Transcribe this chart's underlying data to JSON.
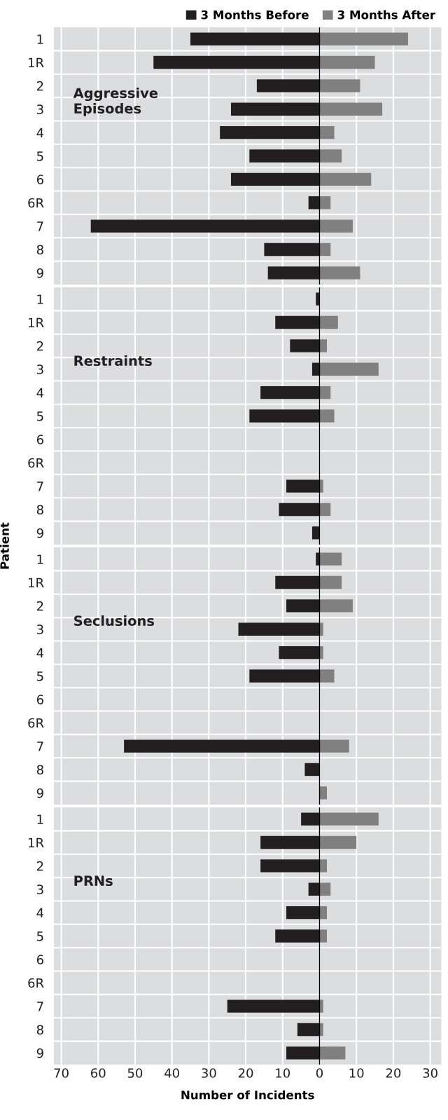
{
  "chart_data": [
    {
      "type": "bar",
      "orientation": "horizontal",
      "categories": [
        "1",
        "1R",
        "2",
        "3",
        "4",
        "5",
        "6",
        "6R",
        "7",
        "8",
        "9"
      ],
      "series": [
        {
          "name": "3 Months Before",
          "color": "#231f20",
          "values": [
            -35,
            -45,
            -17,
            -24,
            -27,
            -19,
            -24,
            -3,
            -62,
            -15,
            -14
          ]
        },
        {
          "name": "3 Months After",
          "color": "#808080",
          "values": [
            24,
            15,
            11,
            17,
            4,
            6,
            14,
            3,
            9,
            3,
            11
          ]
        }
      ],
      "xlim": [
        -72,
        33
      ],
      "stacked": true,
      "annotations": [
        "Aggressive\nEpisodes"
      ],
      "grid": true,
      "legend": "top",
      "tick_labels": "y"
    },
    {
      "type": "bar",
      "orientation": "horizontal",
      "categories": [
        "1",
        "1R",
        "2",
        "3",
        "4",
        "5",
        "6",
        "6R",
        "7",
        "8",
        "9"
      ],
      "series": [
        {
          "color": "#231f20",
          "values": [
            -1,
            -12,
            -8,
            -2,
            -16,
            -19,
            null,
            null,
            -9,
            -11,
            -2
          ]
        },
        {
          "color": "#808080",
          "values": [
            0,
            5,
            2,
            16,
            3,
            4,
            null,
            null,
            1,
            3,
            0
          ]
        }
      ],
      "xlim": [
        -72,
        33
      ],
      "stacked": true,
      "ylabel": "Patient",
      "annotations": [
        "Restraints"
      ],
      "grid": true,
      "tick_labels": "y"
    },
    {
      "type": "bar",
      "orientation": "horizontal",
      "categories": [
        "1",
        "1R",
        "2",
        "3",
        "4",
        "5",
        "6",
        "6R",
        "7",
        "8",
        "9"
      ],
      "series": [
        {
          "color": "#231f20",
          "values": [
            -1,
            -12,
            -9,
            -22,
            -11,
            -19,
            null,
            null,
            -53,
            -4,
            0
          ]
        },
        {
          "color": "#808080",
          "values": [
            6,
            6,
            9,
            1,
            1,
            4,
            null,
            null,
            8,
            0,
            2
          ]
        }
      ],
      "xlim": [
        -72,
        33
      ],
      "stacked": true,
      "annotations": [
        "Seclusions"
      ],
      "grid": true,
      "tick_labels": "y"
    },
    {
      "type": "bar",
      "orientation": "horizontal",
      "categories": [
        "1",
        "1R",
        "2",
        "3",
        "4",
        "5",
        "6",
        "6R",
        "7",
        "8",
        "9"
      ],
      "series": [
        {
          "color": "#231f20",
          "values": [
            -5,
            -16,
            -16,
            -3,
            -9,
            -12,
            null,
            null,
            -25,
            -6,
            -9
          ]
        },
        {
          "color": "#808080",
          "values": [
            16,
            10,
            2,
            3,
            2,
            2,
            null,
            null,
            1,
            1,
            7
          ]
        }
      ],
      "xlim": [
        -72,
        33
      ],
      "stacked": true,
      "xticks": [
        {
          "value": -70,
          "label": "70"
        },
        {
          "value": -60,
          "label": "60"
        },
        {
          "value": -50,
          "label": "50"
        },
        {
          "value": -40,
          "label": "40"
        },
        {
          "value": -30,
          "label": "30"
        },
        {
          "value": -20,
          "label": "20"
        },
        {
          "value": -10,
          "label": "10"
        },
        0,
        10,
        20,
        30
      ],
      "xlabel": "Number of Incidents",
      "annotations": [
        "PRNs"
      ],
      "grid": true
    }
  ]
}
